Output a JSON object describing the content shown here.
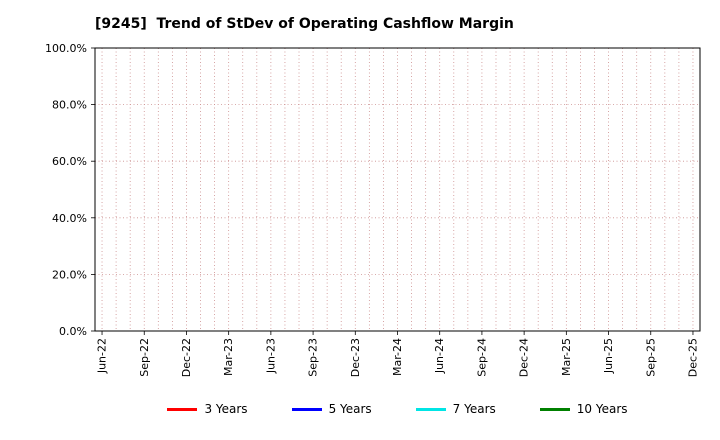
{
  "chart_data": {
    "type": "line",
    "title": "[9245]  Trend of StDev of Operating Cashflow Margin",
    "x_tick_labels": [
      "Jun-22",
      "Sep-22",
      "Dec-22",
      "Mar-23",
      "Jun-23",
      "Sep-23",
      "Dec-23",
      "Mar-24",
      "Jun-24",
      "Sep-24",
      "Dec-24",
      "Mar-25",
      "Jun-25",
      "Sep-25",
      "Dec-25"
    ],
    "x_label_interval_months": 3,
    "y_tick_values": [
      0,
      20,
      40,
      60,
      80,
      100
    ],
    "y_tick_labels": [
      "0.0%",
      "20.0%",
      "40.0%",
      "60.0%",
      "80.0%",
      "100.0%"
    ],
    "ylim": [
      0,
      100
    ],
    "grid": {
      "visible": true,
      "style": "dotted",
      "color": "#cc8f8f"
    },
    "axis_color": "#000000",
    "legend_position": "bottom",
    "series": [
      {
        "name": "3 Years",
        "color": "#ff0000",
        "values": []
      },
      {
        "name": "5 Years",
        "color": "#0000ff",
        "values": []
      },
      {
        "name": "7 Years",
        "color": "#00e5e5",
        "values": []
      },
      {
        "name": "10 Years",
        "color": "#008000",
        "values": []
      }
    ]
  }
}
